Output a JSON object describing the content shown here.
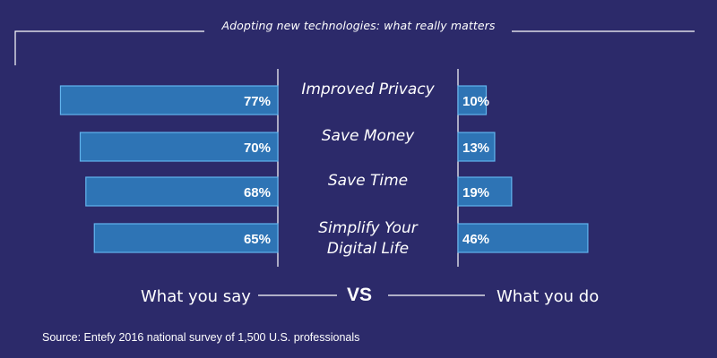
{
  "title": "Adopting new technologies: what really matters",
  "left_label": "What you say",
  "vs_label": "VS",
  "right_label": "What you do",
  "source": "Source: Entefy 2016 national survey of 1,500 U.S. professionals",
  "colors": {
    "background": "#2c2a6a",
    "bar_fill": "#2e74b5",
    "bar_stroke": "#62b4ee",
    "text": "#ffffff",
    "line": "#ffffff"
  },
  "chart_data": {
    "type": "bar",
    "orientation": "horizontal-diverging",
    "categories": [
      "Improved Privacy",
      "Save Money",
      "Save Time",
      "Simplify Your Digital Life"
    ],
    "category_lines": [
      [
        "Improved Privacy"
      ],
      [
        "Save Money"
      ],
      [
        "Save Time"
      ],
      [
        "Simplify Your",
        "Digital Life"
      ]
    ],
    "series": [
      {
        "name": "What you say",
        "values": [
          77,
          70,
          68,
          65
        ],
        "labels": [
          "77%",
          "70%",
          "68%",
          "65%"
        ]
      },
      {
        "name": "What you do",
        "values": [
          10,
          13,
          19,
          46
        ],
        "labels": [
          "10%",
          "13%",
          "19%",
          "46%"
        ]
      }
    ],
    "title": "Adopting new technologies: what really matters",
    "unit": "%",
    "xlim": [
      0,
      100
    ]
  }
}
